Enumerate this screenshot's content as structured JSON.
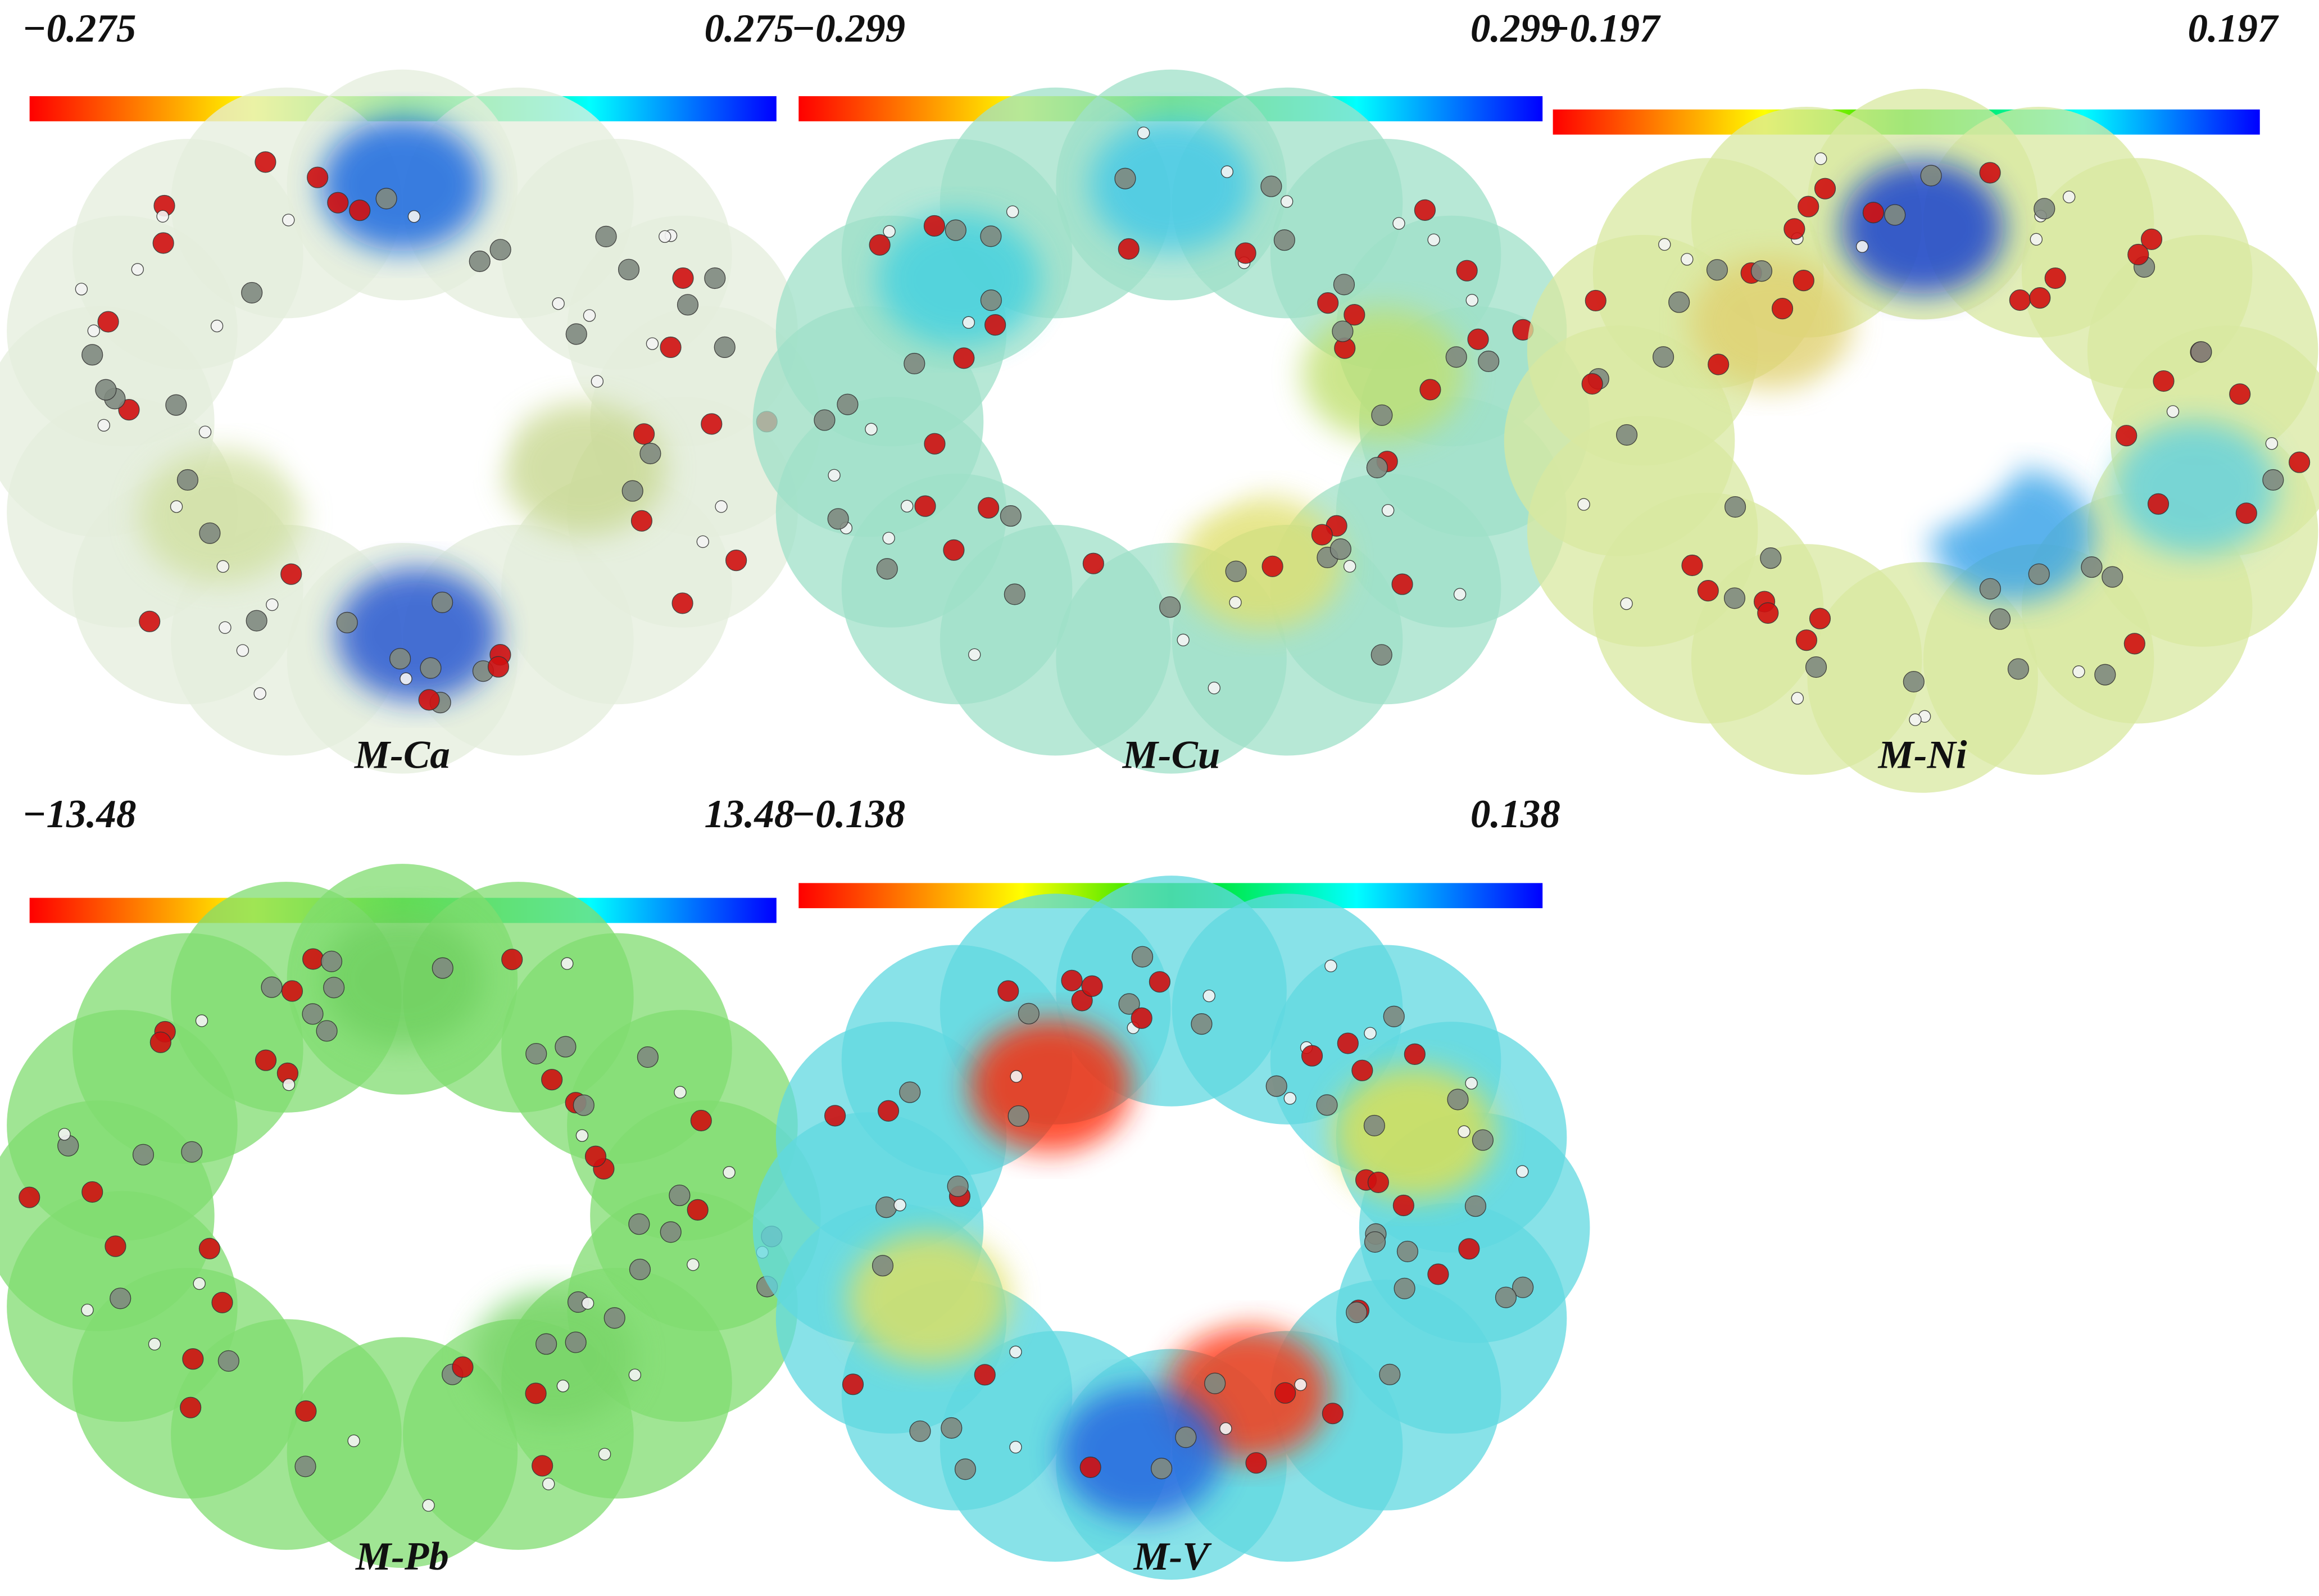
{
  "panels": [
    {
      "min_label": "−0.275",
      "max_label": "0.275",
      "name": "M-Ca"
    },
    {
      "min_label": "−0.299",
      "max_label": "0.299",
      "name": "M-Cu"
    },
    {
      "min_label": "−0.197",
      "max_label": "0.197",
      "name": "M-Ni"
    },
    {
      "min_label": "−13.48",
      "max_label": "13.48",
      "name": "M-Pb"
    },
    {
      "min_label": "−0.138",
      "max_label": "0.138",
      "name": "M-V"
    }
  ]
}
